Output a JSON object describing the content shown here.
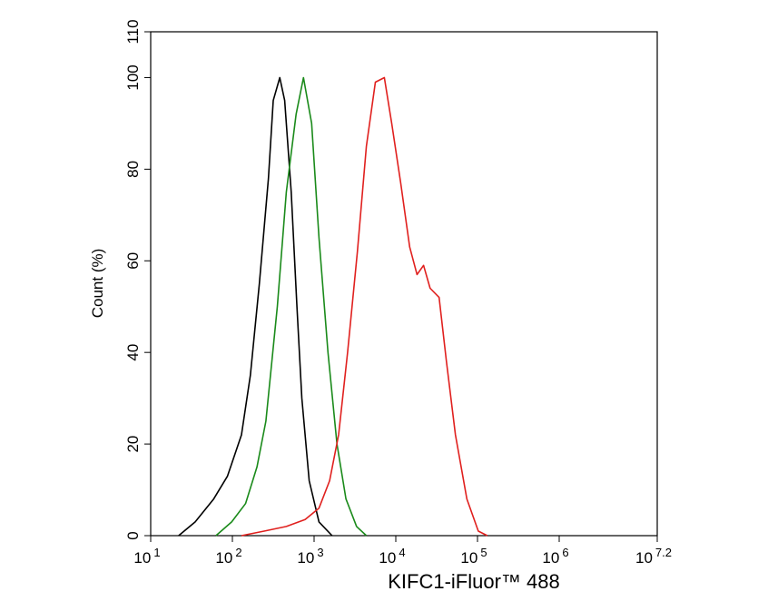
{
  "chart_data": {
    "type": "line",
    "xlabel": "KIFC1-iFluor™ 488",
    "ylabel": "Count  (%)",
    "xscale": "log",
    "xlim": [
      10,
      15848932
    ],
    "ylim": [
      0,
      110
    ],
    "yticks": [
      0,
      20,
      40,
      60,
      80,
      100,
      110
    ],
    "xticks": [
      {
        "value": 10,
        "label": "10",
        "exponent": "1"
      },
      {
        "value": 100,
        "label": "10",
        "exponent": "2"
      },
      {
        "value": 1000,
        "label": "10",
        "exponent": "3"
      },
      {
        "value": 10000,
        "label": "10",
        "exponent": "4"
      },
      {
        "value": 100000,
        "label": "10",
        "exponent": "5"
      },
      {
        "value": 1000000,
        "label": "10",
        "exponent": "6"
      },
      {
        "value": 15848932,
        "label": "10",
        "exponent": "7.2"
      }
    ],
    "series": [
      {
        "color": "#000000",
        "x": [
          22,
          35,
          59,
          87,
          129,
          166,
          214,
          276,
          316,
          380,
          437,
          525,
          617,
          708,
          871,
          1148,
          1660
        ],
        "values": [
          0,
          3,
          8,
          13,
          22,
          35,
          55,
          78,
          95,
          100,
          95,
          75,
          50,
          30,
          12,
          3,
          0
        ]
      },
      {
        "color": "#1a8a1a",
        "x": [
          63,
          98,
          145,
          200,
          257,
          355,
          457,
          603,
          741,
          933,
          1148,
          1479,
          1905,
          2455,
          3311,
          4365
        ],
        "values": [
          0,
          3,
          7,
          15,
          25,
          50,
          75,
          92,
          100,
          90,
          65,
          40,
          20,
          8,
          2,
          0
        ]
      },
      {
        "color": "#e0201e",
        "x": [
          129,
          245,
          457,
          776,
          1148,
          1549,
          1995,
          2570,
          3388,
          4365,
          5623,
          7244,
          8913,
          11482,
          14791,
          18197,
          21878,
          26303,
          33884,
          41687,
          53703,
          74131,
          102329,
          131826
        ],
        "values": [
          0,
          1,
          2,
          3.5,
          6,
          12,
          22,
          40,
          62,
          85,
          99,
          100,
          90,
          77,
          63,
          57,
          59,
          54,
          52,
          38,
          22,
          8,
          1,
          0
        ]
      }
    ]
  }
}
